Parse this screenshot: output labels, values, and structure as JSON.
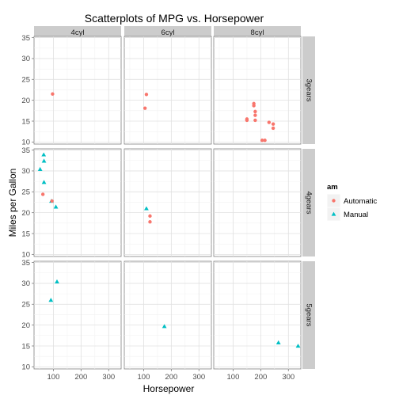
{
  "chart_data": {
    "type": "scatter",
    "title": "Scatterplots of MPG vs. Horsepower",
    "xlabel": "Horsepower",
    "ylabel": "Miles per Gallon",
    "xlim": [
      30,
      345
    ],
    "ylim": [
      9.5,
      35.3
    ],
    "x_ticks": [
      100,
      200,
      300
    ],
    "y_ticks": [
      10,
      15,
      20,
      25,
      30,
      35
    ],
    "grid": true,
    "legend": {
      "title": "am",
      "position": "right",
      "entries": [
        {
          "label": "Automatic",
          "color": "#F8766D",
          "shape": "circle"
        },
        {
          "label": "Manual",
          "color": "#00BFC4",
          "shape": "triangle"
        }
      ]
    },
    "facets": {
      "columns": [
        "4cyl",
        "6cyl",
        "8cyl"
      ],
      "rows": [
        "3gears",
        "4gears",
        "5gears"
      ]
    },
    "points": [
      {
        "col": 0,
        "row": 0,
        "am": "Automatic",
        "x": 97,
        "y": 21.5
      },
      {
        "col": 1,
        "row": 0,
        "am": "Automatic",
        "x": 110,
        "y": 21.4
      },
      {
        "col": 1,
        "row": 0,
        "am": "Automatic",
        "x": 105,
        "y": 18.1
      },
      {
        "col": 2,
        "row": 0,
        "am": "Automatic",
        "x": 175,
        "y": 18.7
      },
      {
        "col": 2,
        "row": 0,
        "am": "Automatic",
        "x": 175,
        "y": 19.2
      },
      {
        "col": 2,
        "row": 0,
        "am": "Automatic",
        "x": 180,
        "y": 17.3
      },
      {
        "col": 2,
        "row": 0,
        "am": "Automatic",
        "x": 180,
        "y": 16.4
      },
      {
        "col": 2,
        "row": 0,
        "am": "Automatic",
        "x": 180,
        "y": 15.2
      },
      {
        "col": 2,
        "row": 0,
        "am": "Automatic",
        "x": 150,
        "y": 15.5
      },
      {
        "col": 2,
        "row": 0,
        "am": "Automatic",
        "x": 150,
        "y": 15.2
      },
      {
        "col": 2,
        "row": 0,
        "am": "Automatic",
        "x": 245,
        "y": 14.3
      },
      {
        "col": 2,
        "row": 0,
        "am": "Automatic",
        "x": 230,
        "y": 14.7
      },
      {
        "col": 2,
        "row": 0,
        "am": "Automatic",
        "x": 245,
        "y": 13.3
      },
      {
        "col": 2,
        "row": 0,
        "am": "Automatic",
        "x": 205,
        "y": 10.4
      },
      {
        "col": 2,
        "row": 0,
        "am": "Automatic",
        "x": 215,
        "y": 10.4
      },
      {
        "col": 0,
        "row": 1,
        "am": "Manual",
        "x": 66,
        "y": 32.4
      },
      {
        "col": 0,
        "row": 1,
        "am": "Manual",
        "x": 52,
        "y": 30.4
      },
      {
        "col": 0,
        "row": 1,
        "am": "Manual",
        "x": 65,
        "y": 33.9
      },
      {
        "col": 0,
        "row": 1,
        "am": "Manual",
        "x": 66,
        "y": 27.3
      },
      {
        "col": 0,
        "row": 1,
        "am": "Manual",
        "x": 109,
        "y": 21.4
      },
      {
        "col": 0,
        "row": 1,
        "am": "Manual",
        "x": 93,
        "y": 22.8
      },
      {
        "col": 0,
        "row": 1,
        "am": "Automatic",
        "x": 62,
        "y": 24.4
      },
      {
        "col": 0,
        "row": 1,
        "am": "Automatic",
        "x": 95,
        "y": 22.8
      },
      {
        "col": 1,
        "row": 1,
        "am": "Manual",
        "x": 110,
        "y": 21.0
      },
      {
        "col": 1,
        "row": 1,
        "am": "Automatic",
        "x": 123,
        "y": 19.2
      },
      {
        "col": 1,
        "row": 1,
        "am": "Automatic",
        "x": 123,
        "y": 17.8
      },
      {
        "col": 0,
        "row": 2,
        "am": "Manual",
        "x": 91,
        "y": 26.0
      },
      {
        "col": 0,
        "row": 2,
        "am": "Manual",
        "x": 113,
        "y": 30.4
      },
      {
        "col": 1,
        "row": 2,
        "am": "Manual",
        "x": 175,
        "y": 19.7
      },
      {
        "col": 2,
        "row": 2,
        "am": "Manual",
        "x": 264,
        "y": 15.8
      },
      {
        "col": 2,
        "row": 2,
        "am": "Manual",
        "x": 335,
        "y": 15.0
      }
    ]
  }
}
